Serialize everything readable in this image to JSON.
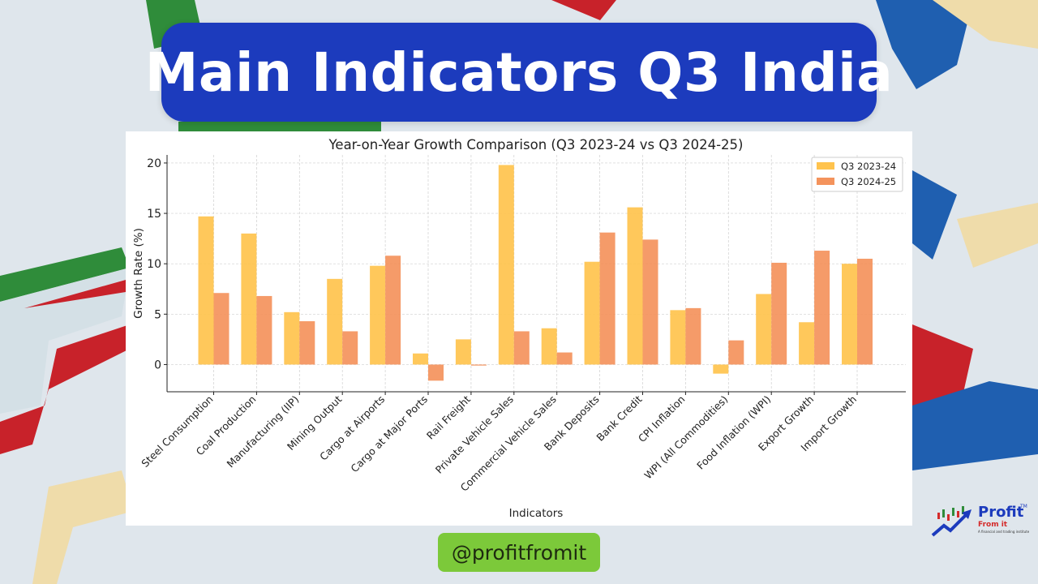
{
  "header": {
    "title": "Main Indicators Q3 India"
  },
  "footer": {
    "handle": "@profitfromit"
  },
  "logo": {
    "word": "Profit",
    "sub": "From it",
    "tagline": "A financial and trading institute",
    "tm": "TM"
  },
  "colors": {
    "series1": "#ffc34d",
    "series2": "#f4935c",
    "title_bg": "#1c3bbd",
    "handle_bg": "#7cc93a"
  },
  "chart_data": {
    "type": "bar",
    "title": "Year-on-Year Growth Comparison (Q3 2023-24 vs Q3 2024-25)",
    "xlabel": "Indicators",
    "ylabel": "Growth Rate (%)",
    "ylim": [
      -2.7,
      20.8
    ],
    "yticks": [
      0,
      5,
      10,
      15,
      20
    ],
    "grid": true,
    "legend_position": "top-right",
    "categories": [
      "Steel Consumption",
      "Coal Production",
      "Manufacturing (IIP)",
      "Mining Output",
      "Cargo at Airports",
      "Cargo at Major Ports",
      "Rail Freight",
      "Private Vehicle Sales",
      "Commercial Vehicle Sales",
      "Bank Deposits",
      "Bank Credit",
      "CPI Inflation",
      "WPI (All Commodities)",
      "Food Inflation (WPI)",
      "Export Growth",
      "Import Growth"
    ],
    "series": [
      {
        "name": "Q3 2023-24",
        "values": [
          14.7,
          13.0,
          5.2,
          8.5,
          9.8,
          1.1,
          2.5,
          19.8,
          3.6,
          10.2,
          15.6,
          5.4,
          -0.9,
          7.0,
          4.2,
          10.0
        ]
      },
      {
        "name": "Q3 2024-25",
        "values": [
          7.1,
          6.8,
          4.3,
          3.3,
          10.8,
          -1.6,
          -0.1,
          3.3,
          1.2,
          13.1,
          12.4,
          5.6,
          2.4,
          10.1,
          11.3,
          10.5
        ]
      }
    ]
  }
}
